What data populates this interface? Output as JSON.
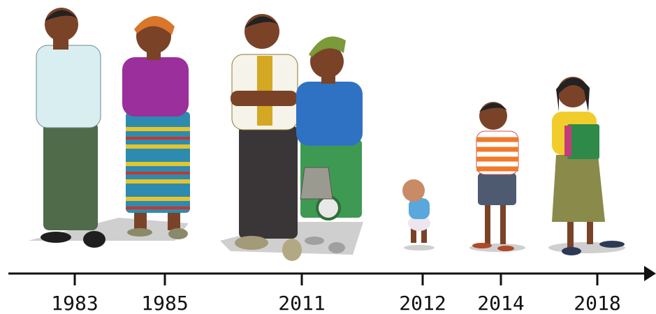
{
  "timeline": {
    "years": [
      "1983",
      "1985",
      "2011",
      "2012",
      "2014",
      "2018"
    ]
  }
}
